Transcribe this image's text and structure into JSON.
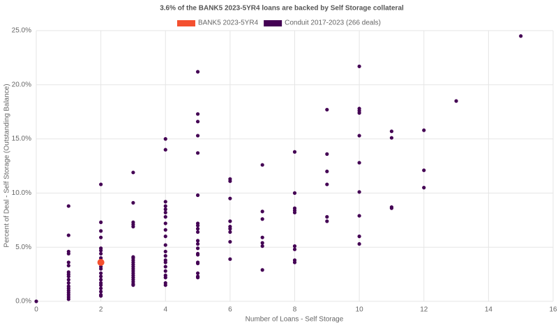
{
  "chart_data": {
    "type": "scatter",
    "title": "3.6% of the BANK5 2023-5YR4 loans are backed by Self Storage collateral",
    "x_label": "Number of Loans - Self Storage",
    "y_label": "Percent of Deal - Self Storage (Outstanding Balance)",
    "xlim": [
      0,
      16
    ],
    "xticks": [
      0,
      2,
      4,
      6,
      8,
      10,
      12,
      14,
      16
    ],
    "ylim": [
      0,
      25
    ],
    "yticks": [
      {
        "value": 0,
        "label": "0.0%"
      },
      {
        "value": 5,
        "label": "5.0%"
      },
      {
        "value": 10,
        "label": "10.0%"
      },
      {
        "value": 15,
        "label": "15.0%"
      },
      {
        "value": 20,
        "label": "20.0%"
      },
      {
        "value": 25,
        "label": "25.0%"
      }
    ],
    "grid": true,
    "legend": "top",
    "series": [
      {
        "name": "BANK5 2023-5YR4",
        "color": "#f4502f",
        "x": [
          2
        ],
        "values": [
          3.6
        ]
      },
      {
        "name": "Conduit 2017-2023 (266 deals)",
        "color": "#440154",
        "x": [
          0,
          1,
          1,
          1,
          1,
          1,
          1,
          1,
          1,
          1,
          1,
          1,
          1,
          1,
          1,
          1,
          1,
          1,
          1,
          2,
          2,
          2,
          2,
          2,
          2,
          2,
          2,
          2,
          2,
          2,
          2,
          2,
          2,
          2,
          2,
          2,
          2,
          2,
          2,
          2,
          3,
          3,
          3,
          3,
          3,
          3,
          3,
          3,
          3,
          3,
          3,
          3,
          3,
          3,
          3,
          3,
          3,
          3,
          3,
          3,
          4,
          4,
          4,
          4,
          4,
          4,
          4,
          4,
          4,
          4,
          4,
          4,
          4,
          4,
          4,
          4,
          4,
          4,
          4,
          4,
          4,
          5,
          5,
          5,
          5,
          5,
          5,
          5,
          5,
          5,
          5,
          5,
          5,
          5,
          5,
          5,
          5,
          5,
          5,
          5,
          5,
          6,
          6,
          6,
          6,
          6,
          6,
          6,
          6,
          6,
          7,
          7,
          7,
          7,
          7,
          7,
          7,
          8,
          8,
          8,
          8,
          8,
          8,
          8,
          8,
          8,
          9,
          9,
          9,
          9,
          9,
          9,
          10,
          10,
          10,
          10,
          10,
          10,
          10,
          10,
          10,
          10,
          11,
          11,
          11,
          11,
          12,
          12,
          12,
          13,
          15
        ],
        "values": [
          0,
          8.8,
          6.1,
          4.6,
          4.4,
          3.6,
          3.3,
          2.7,
          2.5,
          2.3,
          2.0,
          1.7,
          1.4,
          1.2,
          1.0,
          0.8,
          0.6,
          0.4,
          0.2,
          10.8,
          7.3,
          6.5,
          5.9,
          4.9,
          4.7,
          4.4,
          4.0,
          3.8,
          3.5,
          3.2,
          3.0,
          2.6,
          2.3,
          2.0,
          1.7,
          1.5,
          1.2,
          0.9,
          0.6,
          0.5,
          11.9,
          9.1,
          7.3,
          7.1,
          6.9,
          4.1,
          4.0,
          3.8,
          3.6,
          3.4,
          3.2,
          3.0,
          2.8,
          2.6,
          2.4,
          2.2,
          2.0,
          1.8,
          1.6,
          1.5,
          15.0,
          14.0,
          9.2,
          8.8,
          8.5,
          8.2,
          7.8,
          7.2,
          6.6,
          6.0,
          5.2,
          4.6,
          4.2,
          3.8,
          3.6,
          3.2,
          2.8,
          2.4,
          2.2,
          1.7,
          1.5,
          21.2,
          17.3,
          16.6,
          15.3,
          13.7,
          9.8,
          7.2,
          7.0,
          6.7,
          6.4,
          5.6,
          5.3,
          4.9,
          4.4,
          4.3,
          3.6,
          3.5,
          2.6,
          2.3,
          2.2,
          11.3,
          11.1,
          9.5,
          7.4,
          6.9,
          6.7,
          6.4,
          5.5,
          3.9,
          12.6,
          8.3,
          7.6,
          5.9,
          5.4,
          5.1,
          2.9,
          13.8,
          10.0,
          8.6,
          8.4,
          8.2,
          5.1,
          4.8,
          3.8,
          3.6,
          17.7,
          13.6,
          12.0,
          10.8,
          7.8,
          7.4,
          21.7,
          17.8,
          17.6,
          17.4,
          15.3,
          12.8,
          10.1,
          7.9,
          6.0,
          5.3,
          15.7,
          15.1,
          8.7,
          8.6,
          15.8,
          12.1,
          10.5,
          18.5,
          24.5
        ]
      }
    ]
  }
}
